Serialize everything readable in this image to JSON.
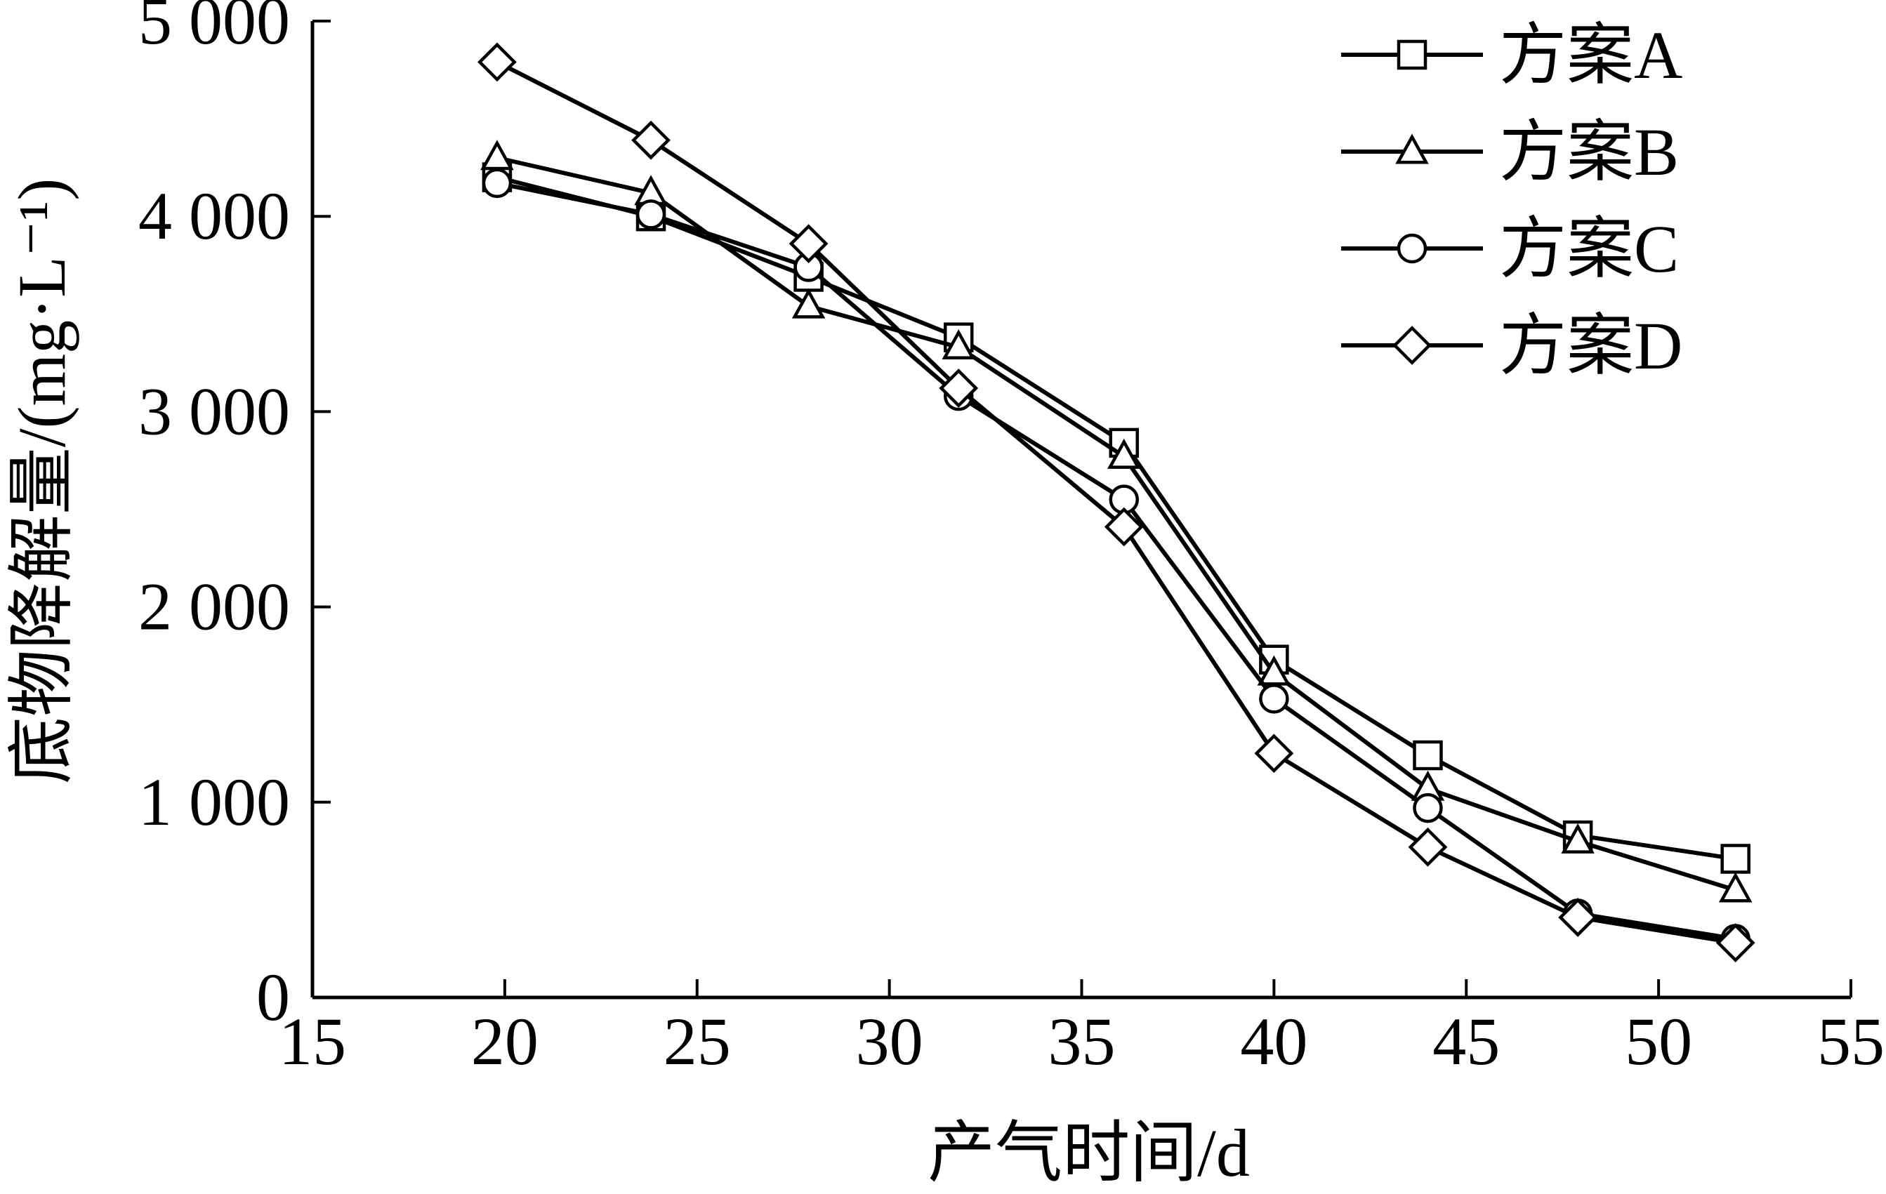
{
  "chart_data": {
    "type": "line",
    "xlabel": "产气时间/d",
    "ylabel": "底物降解量/(mg·L⁻¹)",
    "xlim": [
      15,
      55
    ],
    "ylim": [
      0,
      5000
    ],
    "x_ticks": [
      15,
      20,
      25,
      30,
      35,
      40,
      45,
      50,
      55
    ],
    "x_tick_labels": [
      "15",
      "20",
      "25",
      "30",
      "35",
      "40",
      "45",
      "50",
      "55"
    ],
    "y_ticks": [
      0,
      1000,
      2000,
      3000,
      4000,
      5000
    ],
    "y_tick_labels": [
      "0",
      "1 000",
      "2 000",
      "3 000",
      "4 000",
      "5 000"
    ],
    "grid": false,
    "legend_position": "top-right",
    "x": [
      19.8,
      23.8,
      27.9,
      31.8,
      36.1,
      40.0,
      44.0,
      47.9,
      52.0
    ],
    "series": [
      {
        "name": "方案A",
        "marker": "square",
        "values": [
          4200,
          4000,
          3690,
          3380,
          2840,
          1730,
          1240,
          830,
          710
        ]
      },
      {
        "name": "方案B",
        "marker": "triangle",
        "values": [
          4300,
          4120,
          3540,
          3330,
          2770,
          1660,
          1070,
          800,
          550
        ]
      },
      {
        "name": "方案C",
        "marker": "circle",
        "values": [
          4170,
          4010,
          3740,
          3080,
          2550,
          1530,
          970,
          430,
          300
        ]
      },
      {
        "name": "方案D",
        "marker": "diamond",
        "values": [
          4790,
          4390,
          3860,
          3120,
          2410,
          1250,
          770,
          410,
          280
        ]
      }
    ]
  }
}
